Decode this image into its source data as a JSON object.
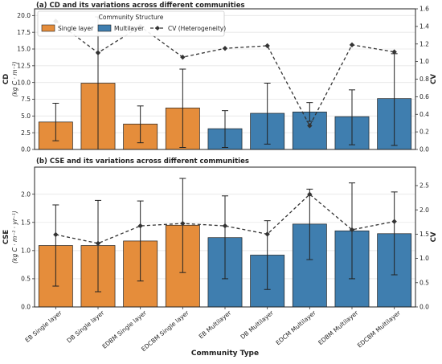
{
  "chart_data": [
    {
      "type": "bar",
      "title": "(a) CD and its variations across different communities",
      "ylabel": "CD",
      "ylabel_unit": "(kg C · m⁻²)",
      "y2label": "CV",
      "ylim": [
        0,
        21
      ],
      "y2lim": [
        0,
        1.6
      ],
      "yticks": [
        "0.0",
        "2.5",
        "5.0",
        "7.5",
        "10.0",
        "12.5",
        "15.0",
        "17.5",
        "20.0"
      ],
      "y2ticks": [
        "0.0",
        "0.2",
        "0.4",
        "0.6",
        "0.8",
        "1.0",
        "1.2",
        "1.4",
        "1.6"
      ],
      "categories": [
        "EB Single layer",
        "DB Single layer",
        "EDBM Single layer",
        "EDCBM Single layer",
        "EB Multilayer",
        "DB Multilayer",
        "EDCM Multilayer",
        "EDBM Multilayer",
        "EDCBM Multilayer"
      ],
      "groups": [
        "Single layer",
        "Single layer",
        "Single layer",
        "Single layer",
        "Multilayer",
        "Multilayer",
        "Multilayer",
        "Multilayer",
        "Multilayer"
      ],
      "series": [
        {
          "name": "Single layer / Multilayer",
          "values": [
            4.1,
            9.9,
            3.8,
            6.2,
            3.1,
            5.4,
            5.6,
            4.9,
            7.6
          ],
          "err_low": [
            1.3,
            0.0,
            1.0,
            0.3,
            0.3,
            0.8,
            4.2,
            0.7,
            0.6
          ],
          "err_high": [
            6.9,
            19.8,
            6.5,
            12.0,
            5.8,
            9.9,
            7.0,
            8.9,
            14.3
          ]
        },
        {
          "name": "CV (Heterogeneity)",
          "axis": "right",
          "values": [
            1.46,
            1.1,
            1.4,
            1.05,
            1.15,
            1.18,
            0.27,
            1.19,
            1.11
          ]
        }
      ],
      "legend": {
        "title": "Community Structure",
        "items": [
          "Single layer",
          "Multilayer",
          "CV (Heterogeneity)"
        ],
        "placement": "top-left"
      },
      "grid": true
    },
    {
      "type": "bar",
      "title": "(b) CSE and its variations across different communities",
      "ylabel": "CSE",
      "ylabel_unit": "(kg C · m⁻² · yr⁻¹)",
      "y2label": "CV",
      "xlabel": "Community Type",
      "ylim": [
        0,
        2.48
      ],
      "y2lim": [
        0,
        2.88
      ],
      "yticks": [
        "0.0",
        "0.5",
        "1.0",
        "1.5",
        "2.0"
      ],
      "y2ticks": [
        "0.0",
        "0.5",
        "1.0",
        "1.5",
        "2.0",
        "2.5"
      ],
      "categories": [
        "EB Single layer",
        "DB Single layer",
        "EDBM Single layer",
        "EDCBM Single layer",
        "EB Multilayer",
        "DB Multilayer",
        "EDCM Multilayer",
        "EDBM Multilayer",
        "EDCBM Multilayer"
      ],
      "groups": [
        "Single layer",
        "Single layer",
        "Single layer",
        "Single layer",
        "Multilayer",
        "Multilayer",
        "Multilayer",
        "Multilayer",
        "Multilayer"
      ],
      "series": [
        {
          "name": "Single layer / Multilayer",
          "values": [
            1.09,
            1.09,
            1.17,
            1.45,
            1.23,
            0.92,
            1.47,
            1.35,
            1.3
          ],
          "err_low": [
            0.37,
            0.27,
            0.46,
            0.61,
            0.5,
            0.31,
            0.84,
            0.5,
            0.57
          ],
          "err_high": [
            1.81,
            1.89,
            1.88,
            2.28,
            1.97,
            1.53,
            2.09,
            2.2,
            2.04
          ]
        },
        {
          "name": "CV (Heterogeneity)",
          "axis": "right",
          "values": [
            1.49,
            1.31,
            1.67,
            1.72,
            1.67,
            1.5,
            2.32,
            1.59,
            1.76
          ]
        }
      ],
      "grid": true
    }
  ],
  "colors": {
    "single": "#e58d3b",
    "multi": "#3f7eaf",
    "line": "#333333"
  }
}
